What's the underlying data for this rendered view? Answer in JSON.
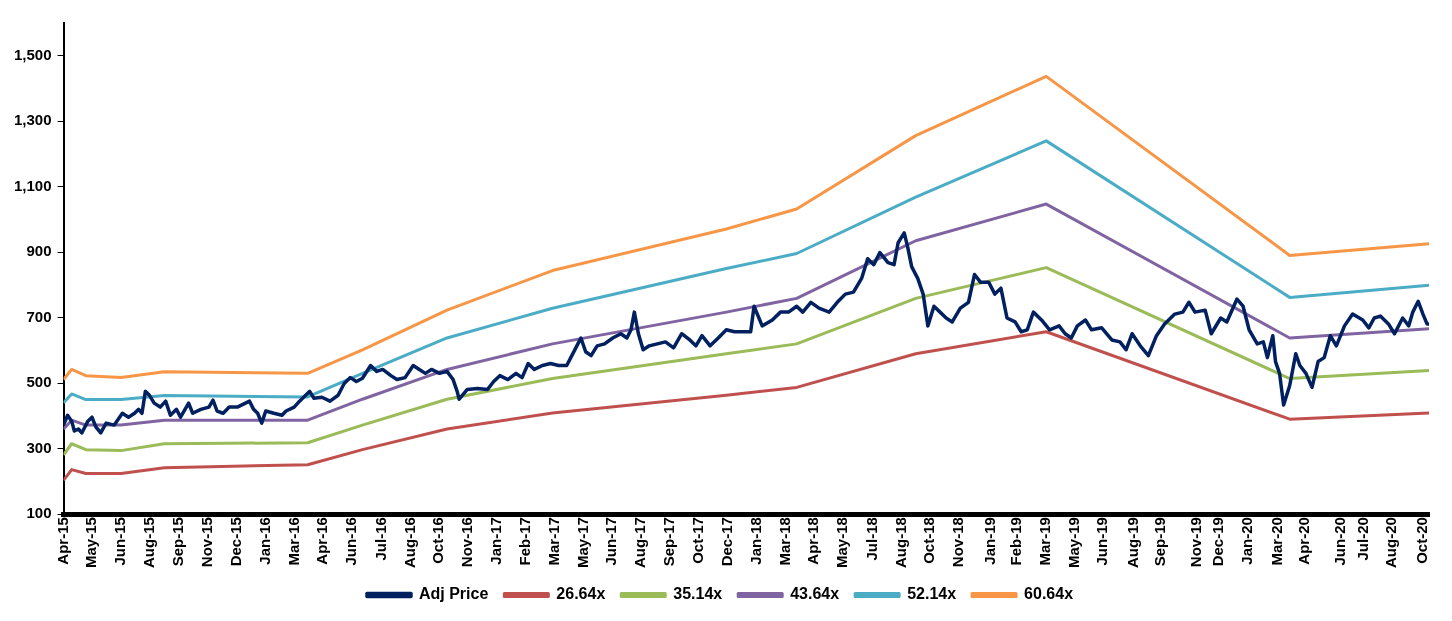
{
  "chart_data": {
    "type": "line",
    "x": [
      "2015-04-01",
      "2015-04-13",
      "2015-05-04",
      "2015-06-25",
      "2015-08-28",
      "2016-03-27",
      "2016-06-16",
      "2016-10-19",
      "2017-03-24",
      "2017-12-06",
      "2018-03-20",
      "2018-09-12",
      "2019-03-24",
      "2020-03-18",
      "2020-10-10"
    ],
    "series": [
      {
        "name": "Adj Price",
        "color": "#002060",
        "x": [
          "2015-04-01",
          "2015-04-07",
          "2015-04-13",
          "2015-04-17",
          "2015-04-23",
          "2015-04-28",
          "2015-05-07",
          "2015-05-13",
          "2015-05-19",
          "2015-05-26",
          "2015-06-03",
          "2015-06-15",
          "2015-06-27",
          "2015-07-06",
          "2015-07-15",
          "2015-07-21",
          "2015-07-26",
          "2015-07-31",
          "2015-08-06",
          "2015-08-13",
          "2015-08-22",
          "2015-08-30",
          "2015-09-06",
          "2015-09-15",
          "2015-09-21",
          "2015-10-03",
          "2015-10-09",
          "2015-10-21",
          "2015-11-02",
          "2015-11-08",
          "2015-11-14",
          "2015-11-23",
          "2015-12-02",
          "2015-12-14",
          "2015-12-26",
          "2016-01-01",
          "2016-01-07",
          "2016-01-13",
          "2016-01-19",
          "2016-01-25",
          "2016-02-06",
          "2016-02-18",
          "2016-02-24",
          "2016-03-07",
          "2016-03-15",
          "2016-03-21",
          "2016-03-30",
          "2016-04-05",
          "2016-04-17",
          "2016-04-29",
          "2016-05-11",
          "2016-05-20",
          "2016-05-29",
          "2016-06-07",
          "2016-06-16",
          "2016-06-28",
          "2016-07-07",
          "2016-07-16",
          "2016-07-28",
          "2016-08-06",
          "2016-08-18",
          "2016-08-30",
          "2016-09-08",
          "2016-09-17",
          "2016-09-26",
          "2016-10-08",
          "2016-10-19",
          "2016-10-28",
          "2016-11-03",
          "2016-11-06",
          "2016-11-18",
          "2016-12-03",
          "2016-12-18",
          "2016-12-27",
          "2017-01-05",
          "2017-01-17",
          "2017-01-29",
          "2017-02-07",
          "2017-02-16",
          "2017-02-25",
          "2017-03-09",
          "2017-03-21",
          "2017-04-02",
          "2017-04-14",
          "2017-04-20",
          "2017-04-29",
          "2017-05-05",
          "2017-05-12",
          "2017-05-20",
          "2017-05-29",
          "2017-06-09",
          "2017-06-21",
          "2017-07-03",
          "2017-07-12",
          "2017-07-18",
          "2017-07-23",
          "2017-07-29",
          "2017-08-05",
          "2017-08-14",
          "2017-08-26",
          "2017-09-07",
          "2017-09-19",
          "2017-10-01",
          "2017-10-13",
          "2017-10-22",
          "2017-10-31",
          "2017-11-12",
          "2017-11-24",
          "2017-12-06",
          "2017-12-18",
          "2017-12-30",
          "2018-01-11",
          "2018-01-16",
          "2018-01-28",
          "2018-02-12",
          "2018-02-24",
          "2018-03-08",
          "2018-03-20",
          "2018-03-29",
          "2018-04-10",
          "2018-04-22",
          "2018-05-07",
          "2018-05-19",
          "2018-05-31",
          "2018-06-12",
          "2018-06-24",
          "2018-07-03",
          "2018-07-12",
          "2018-07-21",
          "2018-08-02",
          "2018-08-11",
          "2018-08-17",
          "2018-08-26",
          "2018-08-31",
          "2018-09-06",
          "2018-09-15",
          "2018-09-23",
          "2018-09-30",
          "2018-10-09",
          "2018-10-18",
          "2018-10-27",
          "2018-11-05",
          "2018-11-17",
          "2018-11-29",
          "2018-12-08",
          "2018-12-17",
          "2018-12-29",
          "2019-01-07",
          "2019-01-16",
          "2019-01-25",
          "2019-02-06",
          "2019-02-15",
          "2019-02-24",
          "2019-03-05",
          "2019-03-17",
          "2019-03-29",
          "2019-04-12",
          "2019-04-21",
          "2019-04-30",
          "2019-05-09",
          "2019-05-21",
          "2019-05-30",
          "2019-06-14",
          "2019-06-29",
          "2019-07-11",
          "2019-07-20",
          "2019-07-29",
          "2019-08-10",
          "2019-08-22",
          "2019-09-03",
          "2019-09-15",
          "2019-09-30",
          "2019-10-12",
          "2019-10-21",
          "2019-10-30",
          "2019-11-14",
          "2019-11-23",
          "2019-12-07",
          "2019-12-16",
          "2019-12-31",
          "2020-01-09",
          "2020-01-18",
          "2020-01-30",
          "2020-02-08",
          "2020-02-14",
          "2020-02-22",
          "2020-02-26",
          "2020-03-03",
          "2020-03-09",
          "2020-03-18",
          "2020-03-27",
          "2020-04-02",
          "2020-04-11",
          "2020-04-20",
          "2020-04-29",
          "2020-05-08",
          "2020-05-17",
          "2020-05-26",
          "2020-06-07",
          "2020-06-19",
          "2020-07-04",
          "2020-07-13",
          "2020-07-21",
          "2020-07-30",
          "2020-08-11",
          "2020-08-20",
          "2020-09-01",
          "2020-09-10",
          "2020-09-16",
          "2020-09-24",
          "2020-10-01",
          "2020-10-07",
          "2020-10-10"
        ],
        "values": [
          372,
          402,
          384,
          354,
          360,
          348,
          384,
          396,
          366,
          348,
          378,
          372,
          408,
          396,
          408,
          420,
          408,
          475,
          463,
          439,
          427,
          445,
          402,
          420,
          396,
          439,
          408,
          420,
          427,
          448,
          415,
          408,
          427,
          427,
          439,
          445,
          420,
          408,
          378,
          415,
          408,
          402,
          415,
          427,
          445,
          457,
          475,
          454,
          457,
          445,
          463,
          499,
          517,
          505,
          515,
          554,
          536,
          542,
          523,
          511,
          517,
          554,
          542,
          530,
          542,
          530,
          536,
          511,
          475,
          451,
          481,
          484,
          481,
          505,
          523,
          511,
          530,
          517,
          560,
          542,
          554,
          560,
          554,
          554,
          578,
          614,
          638,
          596,
          584,
          614,
          620,
          638,
          651,
          638,
          663,
          717,
          651,
          602,
          614,
          620,
          626,
          608,
          651,
          632,
          614,
          645,
          614,
          638,
          663,
          657,
          657,
          657,
          735,
          675,
          693,
          717,
          717,
          735,
          717,
          747,
          729,
          717,
          747,
          772,
          778,
          820,
          880,
          862,
          899,
          868,
          862,
          929,
          959,
          917,
          856,
          820,
          772,
          675,
          735,
          717,
          699,
          687,
          729,
          747,
          832,
          808,
          808,
          772,
          790,
          699,
          687,
          657,
          663,
          717,
          693,
          663,
          675,
          651,
          638,
          675,
          693,
          663,
          669,
          632,
          626,
          602,
          651,
          614,
          584,
          645,
          681,
          711,
          717,
          747,
          717,
          723,
          651,
          699,
          687,
          757,
          735,
          663,
          620,
          626,
          578,
          645,
          566,
          530,
          433,
          493,
          590,
          554,
          530,
          487,
          566,
          578,
          645,
          614,
          675,
          711,
          693,
          669,
          699,
          705,
          681,
          651,
          699,
          675,
          717,
          750,
          711,
          681,
          681
        ]
      },
      {
        "name": "26.64x",
        "color": "#c0504d",
        "values": [
          203,
          236,
          224,
          224,
          242,
          251,
          297,
          360,
          409,
          463,
          487,
          590,
          657,
          390,
          409
        ]
      },
      {
        "name": "35.14x",
        "color": "#9bbb59",
        "values": [
          281,
          315,
          297,
          294,
          315,
          318,
          372,
          451,
          514,
          590,
          620,
          759,
          853,
          514,
          539
        ]
      },
      {
        "name": "43.64x",
        "color": "#8064a2",
        "values": [
          360,
          387,
          372,
          372,
          387,
          387,
          451,
          542,
          620,
          717,
          759,
          935,
          1047,
          638,
          666
        ]
      },
      {
        "name": "52.14x",
        "color": "#4bacc6",
        "values": [
          440,
          467,
          450,
          450,
          462,
          458,
          530,
          638,
          729,
          850,
          896,
          1068,
          1240,
          762,
          799
        ]
      },
      {
        "name": "60.64x",
        "color": "#f79646",
        "values": [
          511,
          542,
          523,
          517,
          535,
          530,
          602,
          723,
          844,
          971,
          1032,
          1256,
          1437,
          890,
          926
        ]
      }
    ],
    "xlim": [
      "2015-04-01",
      "2020-10-10"
    ],
    "xticks": [
      {
        "value": "2015-04-01",
        "label": "Apr-15"
      },
      {
        "value": "2015-05-13",
        "label": "May-15"
      },
      {
        "value": "2015-06-25",
        "label": "Jun-15"
      },
      {
        "value": "2015-08-07",
        "label": "Aug-15"
      },
      {
        "value": "2015-09-19",
        "label": "Sep-15"
      },
      {
        "value": "2015-11-01",
        "label": "Nov-15"
      },
      {
        "value": "2015-12-13",
        "label": "Dec-15"
      },
      {
        "value": "2016-01-25",
        "label": "Jan-16"
      },
      {
        "value": "2016-03-08",
        "label": "Mar-16"
      },
      {
        "value": "2016-04-19",
        "label": "Apr-16"
      },
      {
        "value": "2016-06-01",
        "label": "Jun-16"
      },
      {
        "value": "2016-07-14",
        "label": "Jul-16"
      },
      {
        "value": "2016-08-26",
        "label": "Aug-16"
      },
      {
        "value": "2016-10-07",
        "label": "Oct-16"
      },
      {
        "value": "2016-11-19",
        "label": "Nov-16"
      },
      {
        "value": "2017-01-01",
        "label": "Jan-17"
      },
      {
        "value": "2017-02-12",
        "label": "Feb-17"
      },
      {
        "value": "2017-03-27",
        "label": "Mar-17"
      },
      {
        "value": "2017-05-09",
        "label": "May-17"
      },
      {
        "value": "2017-06-20",
        "label": "Jun-17"
      },
      {
        "value": "2017-08-02",
        "label": "Aug-17"
      },
      {
        "value": "2017-09-14",
        "label": "Sep-17"
      },
      {
        "value": "2017-10-27",
        "label": "Oct-17"
      },
      {
        "value": "2017-12-08",
        "label": "Dec-17"
      },
      {
        "value": "2018-01-20",
        "label": "Jan-18"
      },
      {
        "value": "2018-03-04",
        "label": "Mar-18"
      },
      {
        "value": "2018-04-15",
        "label": "Apr-18"
      },
      {
        "value": "2018-05-28",
        "label": "May-18"
      },
      {
        "value": "2018-07-10",
        "label": "Jul-18"
      },
      {
        "value": "2018-08-22",
        "label": "Aug-18"
      },
      {
        "value": "2018-10-03",
        "label": "Oct-18"
      },
      {
        "value": "2018-11-15",
        "label": "Nov-18"
      },
      {
        "value": "2019-01-01",
        "label": "Jan-19"
      },
      {
        "value": "2019-02-08",
        "label": "Feb-19"
      },
      {
        "value": "2019-03-23",
        "label": "Mar-19"
      },
      {
        "value": "2019-05-05",
        "label": "May-19"
      },
      {
        "value": "2019-06-16",
        "label": "Jun-19"
      },
      {
        "value": "2019-08-01",
        "label": "Aug-19"
      },
      {
        "value": "2019-09-10",
        "label": "Sep-19"
      },
      {
        "value": "2019-11-01",
        "label": "Nov-19"
      },
      {
        "value": "2019-12-04",
        "label": "Dec-19"
      },
      {
        "value": "2020-01-16",
        "label": "Jan-20"
      },
      {
        "value": "2020-03-01",
        "label": "Mar-20"
      },
      {
        "value": "2020-04-10",
        "label": "Apr-20"
      },
      {
        "value": "2020-06-01",
        "label": "Jun-20"
      },
      {
        "value": "2020-07-05",
        "label": "Jul-20"
      },
      {
        "value": "2020-08-16",
        "label": "Aug-20"
      },
      {
        "value": "2020-10-01",
        "label": "Oct-20"
      }
    ],
    "ylim": [
      100,
      1600
    ],
    "yticks": [
      100,
      300,
      500,
      700,
      900,
      {
        "value": 1100,
        "label": "1,100"
      },
      {
        "value": 1300,
        "label": "1,300"
      },
      {
        "value": 1500,
        "label": "1,500"
      }
    ],
    "grid": false,
    "legend": "bottom"
  }
}
